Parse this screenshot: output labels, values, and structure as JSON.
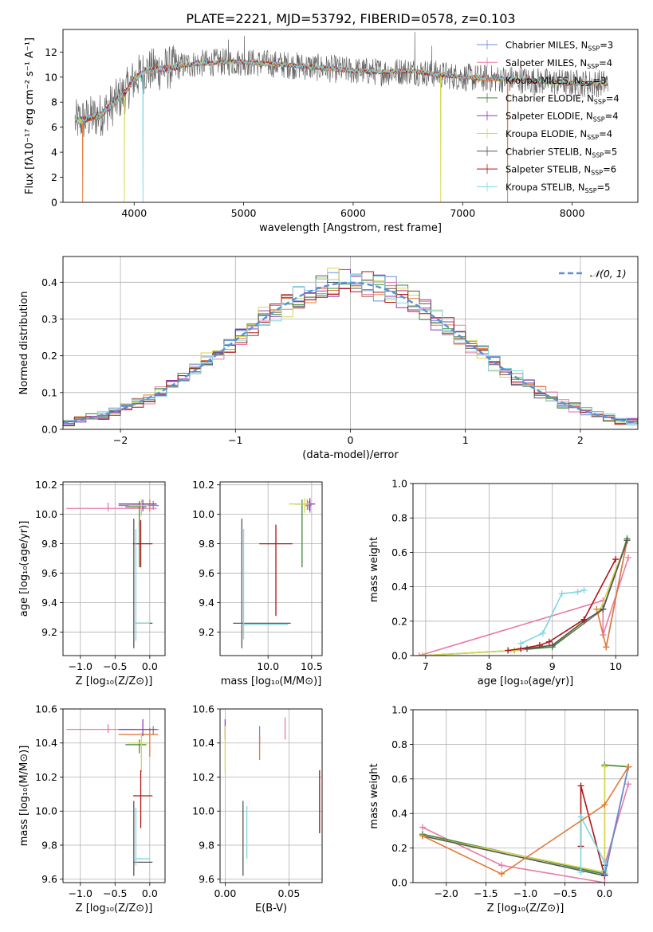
{
  "figure": {
    "title": "PLATE=2221, MJD=53792, FIBERID=0578, z=0.103"
  },
  "colors": {
    "grid": "#b0b0b0",
    "normal_line": "#5b8fd9"
  },
  "chart_data": [
    {
      "id": "spectrum",
      "type": "line",
      "xlabel": "wavelength [Angstrom, rest frame]",
      "ylabel": "Flux [fλ10⁻¹⁷ erg cm⁻² s⁻¹ A⁻¹]",
      "xlim": [
        3350,
        8600
      ],
      "ylim": [
        0,
        13.8
      ],
      "xticks": [
        4000,
        5000,
        6000,
        7000,
        8000
      ],
      "yticks": [
        0,
        2,
        4,
        6,
        8,
        10,
        12
      ],
      "legend_position": "upper-right",
      "legend": [
        {
          "label": "Chabrier MILES, N",
          "sub": "SSP",
          "eq": "=3",
          "color": "#6b8fd6"
        },
        {
          "label": "Salpeter MILES, N",
          "sub": "SSP",
          "eq": "=4",
          "color": "#e87aa8"
        },
        {
          "label": "Kroupa MILES, N",
          "sub": "SSP",
          "eq": "=3",
          "color": "#e07b39"
        },
        {
          "label": "Chabrier ELODIE, N",
          "sub": "SSP",
          "eq": "=4",
          "color": "#3c8a3c"
        },
        {
          "label": "Salpeter ELODIE, N",
          "sub": "SSP",
          "eq": "=4",
          "color": "#8a3db5"
        },
        {
          "label": "Kroupa ELODIE, N",
          "sub": "SSP",
          "eq": "=4",
          "color": "#d4d64a"
        },
        {
          "label": "Chabrier STELIB, N",
          "sub": "SSP",
          "eq": "=5",
          "color": "#555555"
        },
        {
          "label": "Salpeter STELIB, N",
          "sub": "SSP",
          "eq": "=6",
          "color": "#b01414"
        },
        {
          "label": "Kroupa STELIB, N",
          "sub": "SSP",
          "eq": "=5",
          "color": "#7fd6e0"
        }
      ],
      "continuum": {
        "x": [
          3450,
          3700,
          3900,
          4000,
          4100,
          4300,
          4500,
          4800,
          5000,
          5500,
          6000,
          6300,
          6500,
          6800,
          7000,
          7200,
          7500,
          7800,
          8000,
          8300
        ],
        "y": [
          6.4,
          7.0,
          8.6,
          9.8,
          10.5,
          10.7,
          11.0,
          11.2,
          11.2,
          10.9,
          10.5,
          10.4,
          10.5,
          10.2,
          10.0,
          9.9,
          9.8,
          9.6,
          9.5,
          9.5
        ]
      },
      "features": {
        "emission": [
          [
            4861,
            13.0
          ],
          [
            5007,
            13.3
          ],
          [
            6563,
            13.6
          ],
          [
            6717,
            12.5
          ]
        ],
        "drops": [
          [
            3530,
            "#e07b39"
          ],
          [
            3910,
            "#d4d64a"
          ],
          [
            4080,
            "#7fd6e0"
          ],
          [
            6800,
            "#d4d64a"
          ],
          [
            7410,
            "#e07b39"
          ]
        ]
      }
    },
    {
      "id": "residuals",
      "type": "histogram",
      "xlabel": "(data-model)/error",
      "ylabel": "Normed distribution",
      "xlim": [
        -2.5,
        2.5
      ],
      "ylim": [
        0,
        0.47
      ],
      "xticks": [
        -2,
        -1,
        0,
        1,
        2
      ],
      "yticks": [
        0.0,
        0.1,
        0.2,
        0.3,
        0.4
      ],
      "legend_position": "upper-right",
      "legend": [
        {
          "label": "𝒩(0, 1)",
          "color": "#5b8fd9"
        }
      ],
      "bin_width": 0.1
    },
    {
      "id": "age_vs_Z",
      "type": "errorbar",
      "xlabel": "Z [log₁₀(Z/Z⊙)]",
      "ylabel": "age  [log₁₀(age/yr)]",
      "xlim": [
        -1.25,
        0.22
      ],
      "ylim": [
        9.04,
        10.22
      ],
      "xticks": [
        -1.0,
        -0.5,
        0.0
      ],
      "yticks": [
        9.2,
        9.4,
        9.6,
        9.8,
        10.0,
        10.2
      ],
      "points": [
        {
          "x": 0.05,
          "y": 10.06,
          "xerr": [
            0.5,
            0.08
          ],
          "yerr": [
            0.03,
            0.03
          ],
          "color": "#6b8fd6"
        },
        {
          "x": -0.6,
          "y": 10.04,
          "xerr": [
            0.6,
            0.7
          ],
          "yerr": [
            0.02,
            0.04
          ],
          "color": "#e87aa8"
        },
        {
          "x": 0.0,
          "y": 10.07,
          "xerr": [
            0.3,
            0.1
          ],
          "yerr": [
            0.05,
            0.03
          ],
          "color": "#e07b39"
        },
        {
          "x": -0.15,
          "y": 10.05,
          "xerr": [
            0.2,
            0.1
          ],
          "yerr": [
            0.41,
            0.04
          ],
          "color": "#3c8a3c"
        },
        {
          "x": -0.1,
          "y": 10.07,
          "xerr": [
            0.35,
            0.2
          ],
          "yerr": [
            0.05,
            0.03
          ],
          "color": "#8a3db5"
        },
        {
          "x": -0.12,
          "y": 10.06,
          "xerr": [
            0.18,
            0.1
          ],
          "yerr": [
            0.07,
            0.04
          ],
          "color": "#d4d64a"
        },
        {
          "x": -0.23,
          "y": 9.26,
          "xerr": [
            0.0,
            0.27
          ],
          "yerr": [
            0.17,
            0.71
          ],
          "color": "#555555"
        },
        {
          "x": -0.13,
          "y": 9.8,
          "xerr": [
            0.11,
            0.17
          ],
          "yerr": [
            0.16,
            0.16
          ],
          "color": "#b01414"
        },
        {
          "x": -0.2,
          "y": 9.26,
          "xerr": [
            0.03,
            0.2
          ],
          "yerr": [
            0.12,
            0.64
          ],
          "color": "#7fd6e0"
        }
      ]
    },
    {
      "id": "age_vs_mass",
      "type": "errorbar",
      "xlabel": "mass [log₁₀(M/M⊙)]",
      "ylabel": "",
      "xlim": [
        9.45,
        10.62
      ],
      "ylim": [
        9.04,
        10.22
      ],
      "xticks": [
        10.0,
        10.5
      ],
      "yticks": [
        9.2,
        9.4,
        9.6,
        9.8,
        10.0,
        10.2
      ],
      "points": [
        {
          "x": 10.47,
          "y": 10.06,
          "xerr": [
            0.04,
            0.02
          ],
          "yerr": [
            0.03,
            0.03
          ],
          "color": "#6b8fd6"
        },
        {
          "x": 10.48,
          "y": 10.06,
          "xerr": [
            0.05,
            0.02
          ],
          "yerr": [
            0.05,
            0.04
          ],
          "color": "#e87aa8"
        },
        {
          "x": 10.45,
          "y": 10.07,
          "xerr": [
            0.12,
            0.04
          ],
          "yerr": [
            0.04,
            0.03
          ],
          "color": "#e07b39"
        },
        {
          "x": 10.39,
          "y": 10.07,
          "xerr": [
            0.08,
            0.02
          ],
          "yerr": [
            0.43,
            0.03
          ],
          "color": "#3c8a3c"
        },
        {
          "x": 10.48,
          "y": 10.07,
          "xerr": [
            0.04,
            0.06
          ],
          "yerr": [
            0.05,
            0.04
          ],
          "color": "#8a3db5"
        },
        {
          "x": 10.42,
          "y": 10.07,
          "xerr": [
            0.18,
            0.06
          ],
          "yerr": [
            0.06,
            0.04
          ],
          "color": "#d4d64a"
        },
        {
          "x": 9.7,
          "y": 9.26,
          "xerr": [
            0.1,
            0.56
          ],
          "yerr": [
            0.17,
            0.71
          ],
          "color": "#555555"
        },
        {
          "x": 10.09,
          "y": 9.8,
          "xerr": [
            0.19,
            0.19
          ],
          "yerr": [
            0.49,
            0.13
          ],
          "color": "#b01414"
        },
        {
          "x": 9.72,
          "y": 9.25,
          "xerr": [
            0.02,
            0.51
          ],
          "yerr": [
            0.1,
            0.65
          ],
          "color": "#7fd6e0"
        }
      ]
    },
    {
      "id": "mass_weight_vs_age",
      "type": "line",
      "xlabel": "age  [log₁₀(age/yr)]",
      "ylabel": "mass weight",
      "xlim": [
        6.8,
        10.35
      ],
      "ylim": [
        0,
        1.0
      ],
      "xticks": [
        7,
        8,
        9,
        10
      ],
      "yticks": [
        0.0,
        0.2,
        0.4,
        0.6,
        0.8,
        1.0
      ],
      "series": [
        {
          "color": "#6b8fd6",
          "x": [
            9.85,
            10.18
          ],
          "y": [
            0.05,
            0.67
          ]
        },
        {
          "color": "#e87aa8",
          "x": [
            6.9,
            9.8,
            9.8,
            10.2
          ],
          "y": [
            0.0,
            0.32,
            0.12,
            0.57
          ]
        },
        {
          "color": "#e07b39",
          "x": [
            9.7,
            9.85,
            10.18
          ],
          "y": [
            0.27,
            0.05,
            0.67
          ]
        },
        {
          "color": "#3c8a3c",
          "x": [
            6.95,
            8.4,
            9.0,
            9.8,
            10.18
          ],
          "y": [
            0.0,
            0.03,
            0.05,
            0.27,
            0.68
          ]
        },
        {
          "color": "#8a3db5",
          "x": [
            8.4,
            9.0,
            9.8,
            10.18
          ],
          "y": [
            0.03,
            0.06,
            0.27,
            0.67
          ]
        },
        {
          "color": "#d4d64a",
          "x": [
            6.95,
            8.4,
            9.0,
            9.75,
            10.18
          ],
          "y": [
            0.0,
            0.03,
            0.06,
            0.26,
            0.67
          ]
        },
        {
          "color": "#555555",
          "x": [
            8.6,
            9.0,
            9.5,
            9.8,
            10.18
          ],
          "y": [
            0.04,
            0.06,
            0.2,
            0.27,
            0.67
          ]
        },
        {
          "color": "#b01414",
          "x": [
            8.3,
            8.5,
            8.8,
            8.95,
            9.5,
            10.0
          ],
          "y": [
            0.03,
            0.04,
            0.06,
            0.08,
            0.21,
            0.56
          ]
        },
        {
          "color": "#7fd6e0",
          "x": [
            8.5,
            8.85,
            9.15,
            9.4,
            9.5
          ],
          "y": [
            0.07,
            0.13,
            0.36,
            0.37,
            0.38
          ]
        }
      ]
    },
    {
      "id": "mass_vs_Z",
      "type": "errorbar",
      "xlabel": "Z [log₁₀(Z/Z⊙)]",
      "ylabel": "mass [log₁₀(M/M⊙)]",
      "xlim": [
        -1.25,
        0.22
      ],
      "ylim": [
        9.58,
        10.6
      ],
      "xticks": [
        -1.0,
        -0.5,
        0.0
      ],
      "yticks": [
        9.6,
        9.8,
        10.0,
        10.2,
        10.4,
        10.6
      ],
      "points": [
        {
          "x": 0.05,
          "y": 10.48,
          "xerr": [
            0.5,
            0.08
          ],
          "yerr": [
            0.03,
            0.02
          ],
          "color": "#6b8fd6"
        },
        {
          "x": -0.6,
          "y": 10.48,
          "xerr": [
            0.6,
            0.7
          ],
          "yerr": [
            0.02,
            0.03
          ],
          "color": "#e87aa8"
        },
        {
          "x": 0.0,
          "y": 10.45,
          "xerr": [
            0.45,
            0.12
          ],
          "yerr": [
            0.13,
            0.04
          ],
          "color": "#e07b39"
        },
        {
          "x": -0.15,
          "y": 10.39,
          "xerr": [
            0.2,
            0.1
          ],
          "yerr": [
            0.05,
            0.03
          ],
          "color": "#3c8a3c"
        },
        {
          "x": -0.1,
          "y": 10.48,
          "xerr": [
            0.35,
            0.2
          ],
          "yerr": [
            0.04,
            0.06
          ],
          "color": "#8a3db5"
        },
        {
          "x": -0.12,
          "y": 10.4,
          "xerr": [
            0.18,
            0.1
          ],
          "yerr": [
            0.17,
            0.06
          ],
          "color": "#d4d64a"
        },
        {
          "x": -0.23,
          "y": 9.7,
          "xerr": [
            0.0,
            0.27
          ],
          "yerr": [
            0.08,
            0.36
          ],
          "color": "#555555"
        },
        {
          "x": -0.13,
          "y": 10.09,
          "xerr": [
            0.11,
            0.17
          ],
          "yerr": [
            0.19,
            0.15
          ],
          "color": "#b01414"
        },
        {
          "x": -0.2,
          "y": 9.72,
          "xerr": [
            0.03,
            0.2
          ],
          "yerr": [
            0.04,
            0.3
          ],
          "color": "#7fd6e0"
        }
      ]
    },
    {
      "id": "mass_vs_ebv",
      "type": "errorbar",
      "xlabel": "E(B-V)",
      "ylabel": "",
      "xlim": [
        -0.004,
        0.076
      ],
      "ylim": [
        9.58,
        10.6
      ],
      "xticks": [
        0.0,
        0.05
      ],
      "yticks": [
        9.6,
        9.8,
        10.0,
        10.2,
        10.4,
        10.6
      ],
      "points": [
        {
          "x": 0.0,
          "y": 10.48,
          "xerr": [
            0,
            0
          ],
          "yerr": [
            0.06,
            0.06
          ],
          "color": "#8a3db5"
        },
        {
          "x": 0.0,
          "y": 10.4,
          "xerr": [
            0,
            0
          ],
          "yerr": [
            0.18,
            0.1
          ],
          "color": "#d4d64a"
        },
        {
          "x": 0.027,
          "y": 10.45,
          "xerr": [
            0,
            0
          ],
          "yerr": [
            0.06,
            0.05
          ],
          "color": "#6b8fd6"
        },
        {
          "x": 0.027,
          "y": 10.39,
          "xerr": [
            0,
            0
          ],
          "yerr": [
            0.09,
            0.05
          ],
          "color": "#e07b39"
        },
        {
          "x": 0.047,
          "y": 10.48,
          "xerr": [
            0,
            0
          ],
          "yerr": [
            0.06,
            0.07
          ],
          "color": "#e87aa8"
        },
        {
          "x": 0.014,
          "y": 9.85,
          "xerr": [
            0,
            0
          ],
          "yerr": [
            0.23,
            0.21
          ],
          "color": "#555555"
        },
        {
          "x": 0.017,
          "y": 9.88,
          "xerr": [
            0,
            0
          ],
          "yerr": [
            0.16,
            0.15
          ],
          "color": "#7fd6e0"
        },
        {
          "x": 0.074,
          "y": 10.05,
          "xerr": [
            0,
            0
          ],
          "yerr": [
            0.18,
            0.19
          ],
          "color": "#b01414"
        }
      ]
    },
    {
      "id": "mass_weight_vs_Z",
      "type": "line",
      "xlabel": "Z [log₁₀(Z/Z⊙)]",
      "ylabel": "mass weight",
      "xlim": [
        -2.42,
        0.42
      ],
      "ylim": [
        0,
        1.0
      ],
      "xticks": [
        -2.0,
        -1.5,
        -1.0,
        -0.5,
        0.0
      ],
      "yticks": [
        0.0,
        0.2,
        0.4,
        0.6,
        0.8,
        1.0
      ],
      "series": [
        {
          "color": "#e87aa8",
          "x": [
            -2.3,
            -1.3,
            0.0,
            0.0,
            0.3
          ],
          "y": [
            0.32,
            0.1,
            0.0,
            0.1,
            0.57
          ]
        },
        {
          "color": "#3c8a3c",
          "x": [
            -2.3,
            0.0,
            0.0,
            0.3
          ],
          "y": [
            0.28,
            0.05,
            0.68,
            0.67
          ]
        },
        {
          "color": "#d4d64a",
          "x": [
            -2.3,
            0.0,
            0.0
          ],
          "y": [
            0.27,
            0.06,
            0.67
          ]
        },
        {
          "color": "#555555",
          "x": [
            -2.3,
            0.0,
            0.3
          ],
          "y": [
            0.27,
            0.04,
            0.67
          ]
        },
        {
          "color": "#b01414",
          "x": [
            -0.3,
            -0.3,
            0.0,
            0.0
          ],
          "y": [
            0.21,
            0.56,
            0.04,
            0.1
          ]
        },
        {
          "color": "#7fd6e0",
          "x": [
            -0.3,
            -0.3,
            0.0,
            0.0
          ],
          "y": [
            0.06,
            0.38,
            0.12,
            0.07
          ]
        },
        {
          "color": "#6b8fd6",
          "x": [
            0.0,
            0.3
          ],
          "y": [
            0.05,
            0.67
          ]
        },
        {
          "color": "#e07b39",
          "x": [
            -2.3,
            -1.3,
            0.0,
            0.3
          ],
          "y": [
            0.27,
            0.05,
            0.45,
            0.67
          ]
        }
      ]
    }
  ]
}
